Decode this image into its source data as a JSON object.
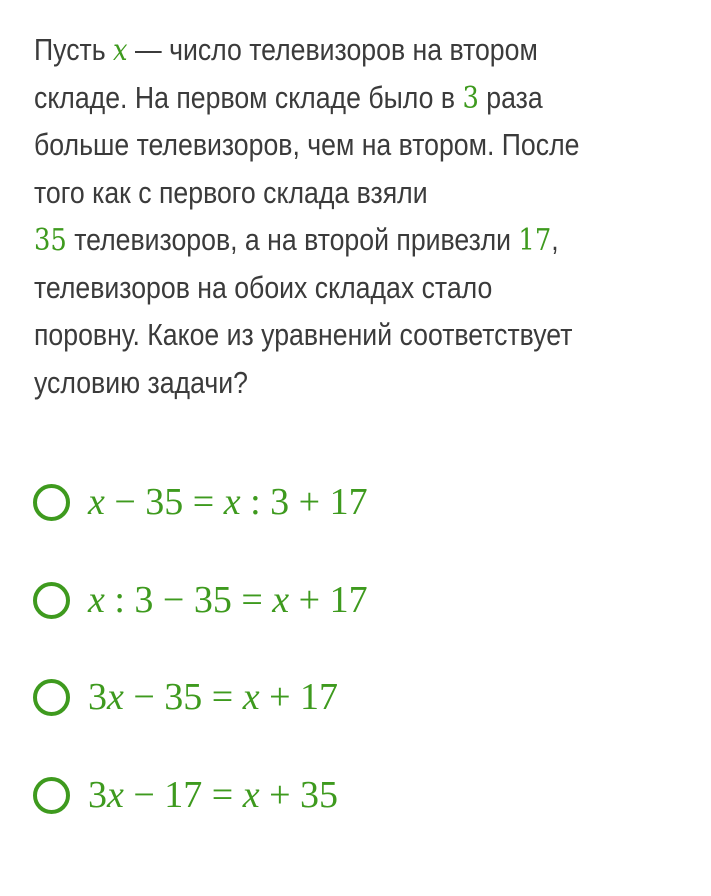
{
  "question": {
    "lines": [
      [
        "Пусть ",
        "x",
        " — число телевизоров на втором"
      ],
      [
        "складе. На первом складе было в ",
        "3",
        " раза"
      ],
      [
        "больше телевизоров, чем на втором. После"
      ],
      [
        "того как с первого склада взяли"
      ],
      [
        "",
        "35",
        " телевизоров, а на второй привезли ",
        "17",
        ","
      ],
      [
        "телевизоров на обоих складах стало"
      ],
      [
        "поровну. Какое из уравнений соответствует"
      ],
      [
        "условию задачи?"
      ]
    ]
  },
  "options": [
    {
      "label": "x − 35 = x : 3 + 17"
    },
    {
      "label": "x : 3 − 35 = x + 17"
    },
    {
      "label": "3x − 35 = x + 17"
    },
    {
      "label": "3x − 17 = x + 35"
    }
  ],
  "colors": {
    "accent": "#3e9a1e",
    "text": "#3b3b3b"
  }
}
